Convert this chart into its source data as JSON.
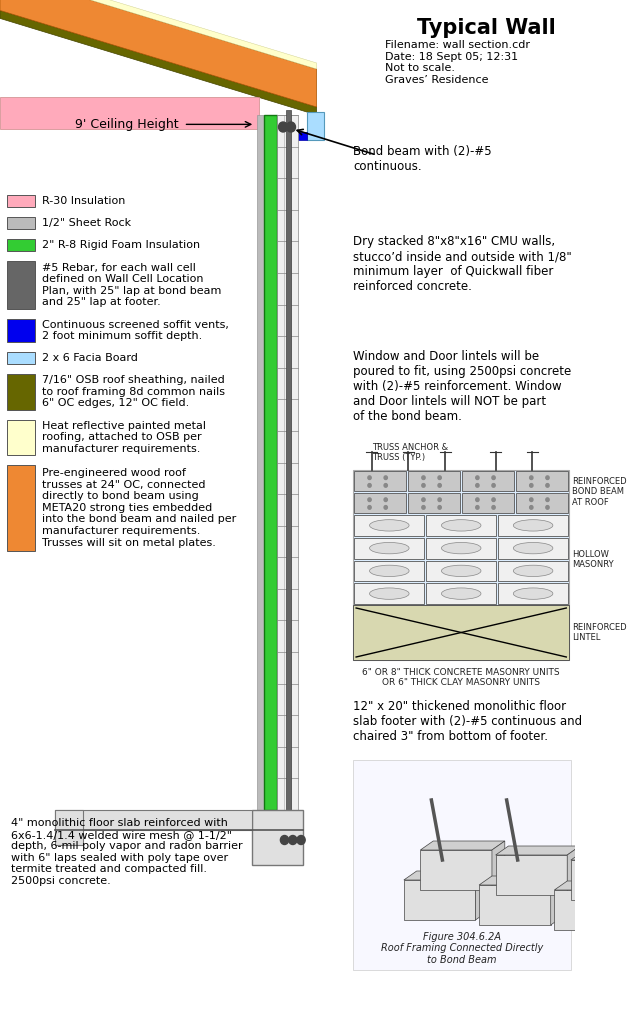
{
  "title": "Typical Wall",
  "subtitle": "Filename: wall section.cdr\nDate: 18 Sept 05; 12:31\nNot to scale.\nGraves’ Residence",
  "bg_color": "#ffffff",
  "green_color": "#33cc33",
  "gray_color": "#888888",
  "pink_color": "#ffaabb",
  "blue_color": "#0000ee",
  "cyan_color": "#aaddff",
  "olive_color": "#666600",
  "cream_color": "#ffffcc",
  "orange_color": "#ee8833",
  "sheetrock_color": "#bbbbbb",
  "cmu_color": "#f0f0f0",
  "rebar_color": "#666666",
  "legend_items": [
    {
      "color": "#ffaabb",
      "label": "R-30 Insulation",
      "lines": 1
    },
    {
      "color": "#bbbbbb",
      "label": "1/2\" Sheet Rock",
      "lines": 1
    },
    {
      "color": "#33cc33",
      "label": "2\" R-8 Rigid Foam Insulation",
      "lines": 1
    },
    {
      "color": "#666666",
      "label": "#5 Rebar, for each wall cell\ndefined on Wall Cell Location\nPlan, with 25\" lap at bond beam\nand 25\" lap at footer.",
      "lines": 4
    },
    {
      "color": "#0000ee",
      "label": "Continuous screened soffit vents,\n2 foot minimum soffit depth.",
      "lines": 2
    },
    {
      "color": "#aaddff",
      "label": "2 x 6 Facia Board",
      "lines": 1
    },
    {
      "color": "#666600",
      "label": "7/16\" OSB roof sheathing, nailed\nto roof framing 8d common nails\n6\" OC edges, 12\" OC field.",
      "lines": 3
    },
    {
      "color": "#ffffcc",
      "label": "Heat reflective painted metal\nroofing, attached to OSB per\nmanufacturer requirements.",
      "lines": 3
    },
    {
      "color": "#ee8833",
      "label": "Pre-engineered wood roof\ntrusses at 24\" OC, connected\ndirectly to bond beam using\nMETA20 strong ties embedded\ninto the bond beam and nailed per\nmanufacturer requirements.\nTrusses will sit on metal plates.",
      "lines": 7
    }
  ],
  "ann_bond_beam": "Bond beam with (2)-#5\ncontinuous.",
  "ann_cmu": "Dry stacked 8\"x8\"x16\" CMU walls,\nstucco’d inside and outside with 1/8\"\nminimum layer  of Quickwall fiber\nreinforced concrete.",
  "ann_lintel": "Window and Door lintels will be\npoured to fit, using 2500psi concrete\nwith (2)-#5 reinforcement. Window\nand Door lintels will NOT be part\nof the bond beam.",
  "ann_floor": "4\" monolithic floor slab reinforced with\n6x6-1.4/1.4 welded wire mesh @ 1-1/2\"\ndepth, 6-mil poly vapor and radon barrier\nwith 6\" laps sealed with poly tape over\ntermite treated and compacted fill.\n2500psi concrete.",
  "ann_footer": "12\" x 20\" thickened monolithic floor\nslab footer with (2)-#5 continuous and\nchaired 3\" from bottom of footer.",
  "ceiling_label": "9' Ceiling Height",
  "figure_caption": "Figure 304.6.2A\nRoof Framing Connected Directly\nto Bond Beam",
  "masonry_label": "6\" OR 8\" THICK CONCRETE MASONRY UNITS\nOR 6\" THICK CLAY MASONRY UNITS",
  "sketch_label_bb": "REINFORCED\nBOND BEAM\nAT ROOF",
  "sketch_label_hm": "HOLLOW\nMASONRY",
  "sketch_label_rl": "REINFORCED\nLINTEL",
  "sketch_label_ta": "TRUSS ANCHOR &\nTRUSS (TYP.)"
}
